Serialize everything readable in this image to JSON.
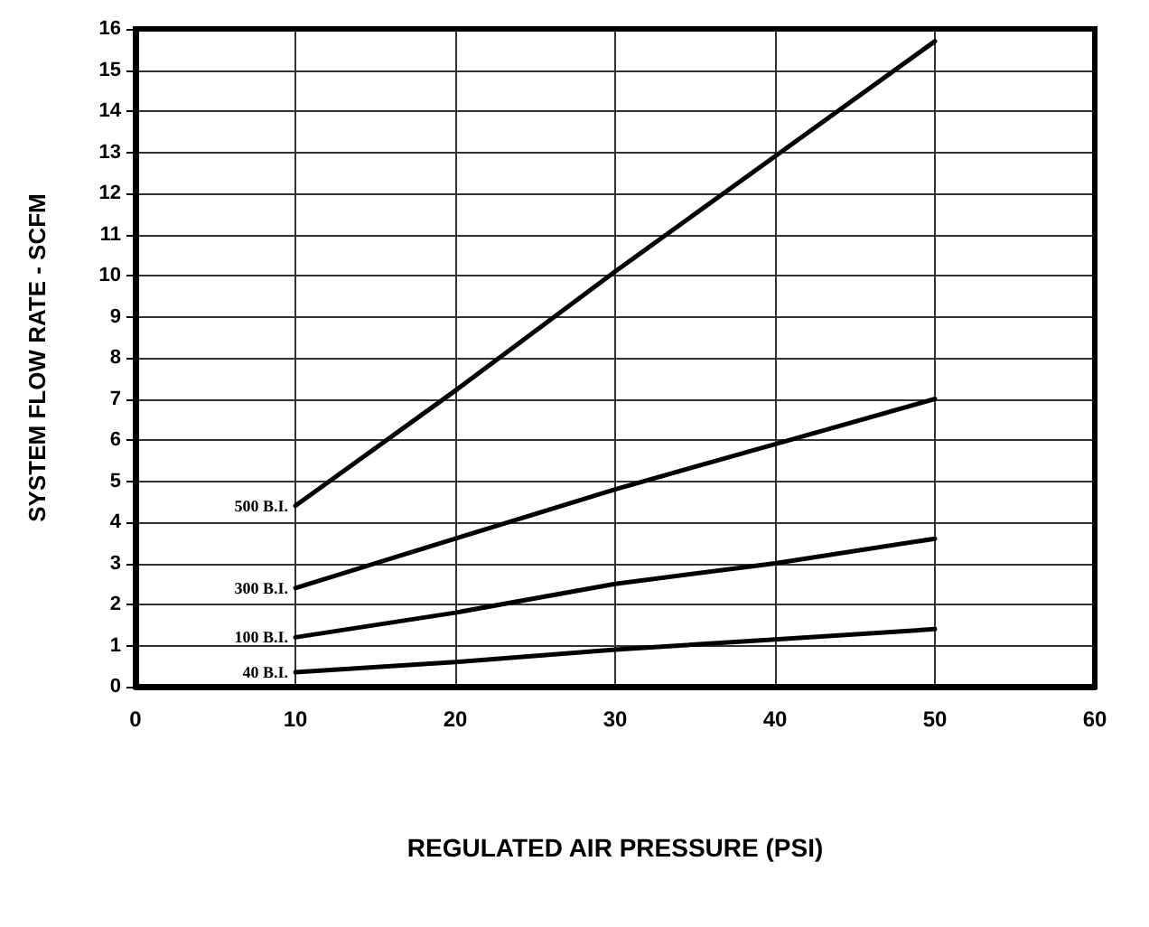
{
  "chart_data": {
    "type": "line",
    "xlabel": "REGULATED AIR PRESSURE (PSI)",
    "ylabel": "SYSTEM FLOW RATE - SCFM",
    "x": [
      10,
      20,
      30,
      40,
      50
    ],
    "series": [
      {
        "name": "500 B.I.",
        "color": "#000000",
        "values": [
          4.4,
          7.2,
          10.1,
          12.9,
          15.7
        ]
      },
      {
        "name": "300 B.I.",
        "color": "#000000",
        "values": [
          2.4,
          3.6,
          4.8,
          5.9,
          7.0
        ]
      },
      {
        "name": "100 B.I.",
        "color": "#000000",
        "values": [
          1.2,
          1.8,
          2.5,
          3.0,
          3.6
        ]
      },
      {
        "name": "40 B.I.",
        "color": "#000000",
        "values": [
          0.35,
          0.6,
          0.9,
          1.15,
          1.4
        ]
      }
    ],
    "xlim": [
      0,
      60
    ],
    "xticks": [
      0,
      10,
      20,
      30,
      40,
      50,
      60
    ],
    "ylim": [
      0,
      16
    ],
    "yticks": [
      0,
      1,
      2,
      3,
      4,
      5,
      6,
      7,
      8,
      9,
      10,
      11,
      12,
      13,
      14,
      15,
      16
    ],
    "grid": true,
    "legend": false,
    "marker": "none",
    "line_style": "solid"
  }
}
